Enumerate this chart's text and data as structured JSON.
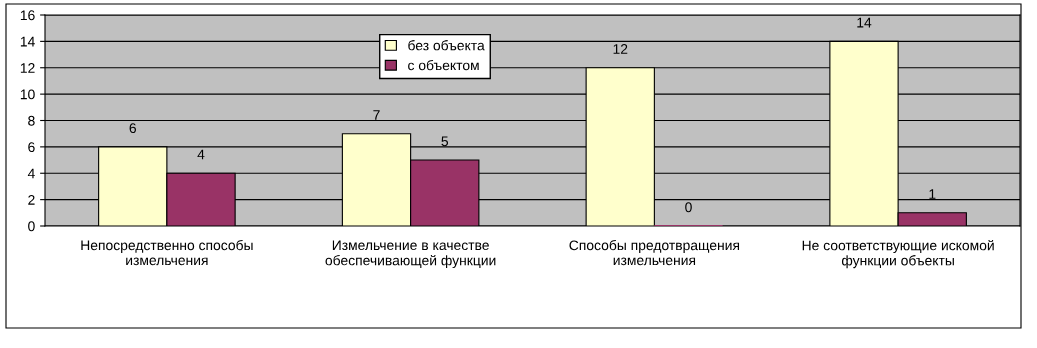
{
  "chart_data": {
    "type": "bar",
    "categories": [
      "Непосредственно способы\nизмельчения",
      "Измельчение в качестве\nобеспечивающей функции",
      "Способы предотвращения\nизмельчения",
      "Не соответствующие искомой\nфункции объекты"
    ],
    "series": [
      {
        "name": "без объекта",
        "color": "#ffffcc",
        "values": [
          6,
          7,
          12,
          14
        ]
      },
      {
        "name": "с объектом",
        "color": "#993366",
        "values": [
          4,
          5,
          0,
          1
        ]
      }
    ],
    "ylim": [
      0,
      16
    ],
    "yticks": [
      0,
      2,
      4,
      6,
      8,
      10,
      12,
      14,
      16
    ],
    "grid": "y",
    "legend": "top",
    "data_labels": true
  }
}
